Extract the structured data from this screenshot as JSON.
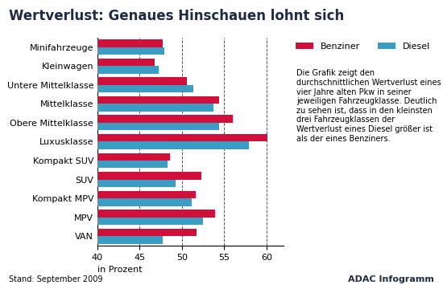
{
  "chart_data": {
    "type": "bar",
    "orientation": "horizontal",
    "title": "Wertverlust: Genaues Hinschauen lohnt sich",
    "xlabel": "in Prozent",
    "annotations": [
      "Die Grafik zeigt den durchschnittlichen Wertverlust eines vier Jahre alten Pkw in seiner jeweiligen Fahrzeugklasse. Deutlich zu sehen ist, dass in den kleinsten drei Fahrzeugklassen der Wertverlust eines Diesel größer ist als der eines Benziners.",
      "Stand: September 2009",
      "ADAC Infogramm"
    ],
    "categories": [
      "Minifahrzeuge",
      "Kleinwagen",
      "Untere Mittelklasse",
      "Mittelklasse",
      "Obere Mittelklasse",
      "Luxusklasse",
      "Kompakt SUV",
      "SUV",
      "Kompakt MPV",
      "MPV",
      "VAN"
    ],
    "series": [
      {
        "name": "Benziner",
        "color": "#d0103a",
        "values": [
          47.7,
          46.8,
          50.6,
          54.4,
          56.0,
          60.1,
          48.6,
          52.3,
          51.6,
          53.9,
          51.7
        ]
      },
      {
        "name": "Diesel",
        "color": "#3c9dc4",
        "values": [
          47.9,
          47.2,
          51.3,
          53.7,
          54.4,
          57.9,
          48.3,
          49.2,
          51.1,
          52.5,
          47.7
        ]
      }
    ],
    "xlim": [
      40,
      62
    ],
    "xticks": [
      40,
      45,
      50,
      55,
      60
    ],
    "grid": true,
    "legend": "upper right",
    "data_labels": false
  }
}
